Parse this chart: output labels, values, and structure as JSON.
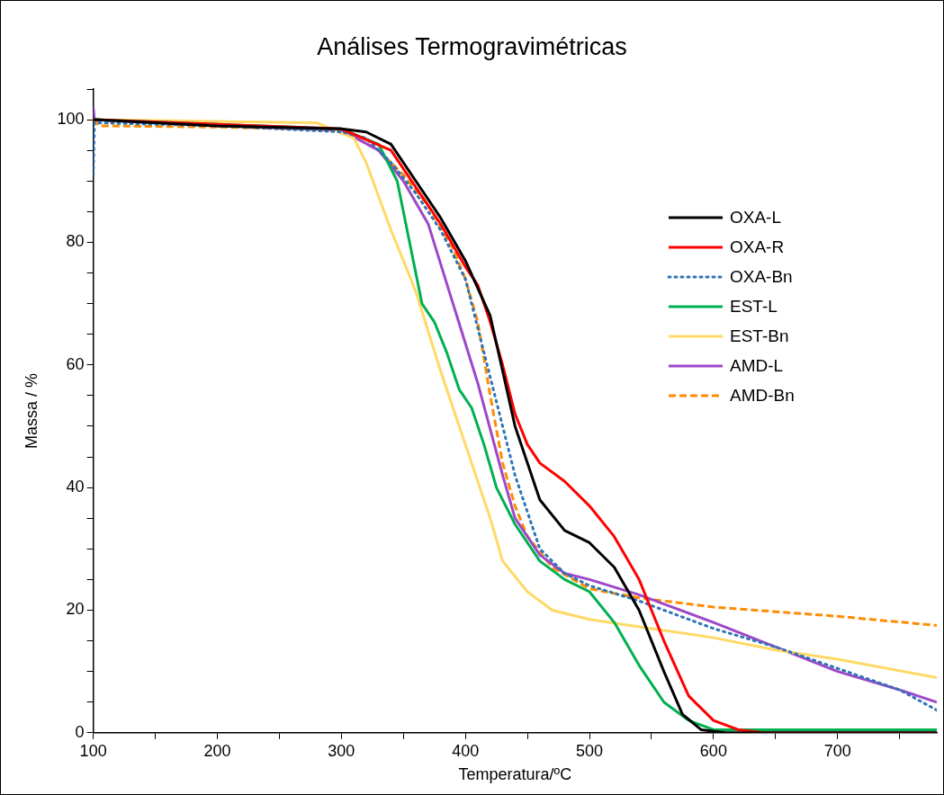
{
  "chart_data": {
    "type": "line",
    "title": "Análises Termogravimétricas",
    "xlabel": "Temperatura/ºC",
    "ylabel": "Massa / %",
    "xlim": [
      100,
      780
    ],
    "ylim": [
      0,
      105
    ],
    "xticks": [
      100,
      {
        "value": 150,
        "label": null
      },
      200,
      {
        "value": 250,
        "label": null
      },
      300,
      {
        "value": 350,
        "label": null
      },
      400,
      {
        "value": 450,
        "label": null
      },
      500,
      {
        "value": 550,
        "label": null
      },
      600,
      {
        "value": 650,
        "label": null
      },
      700,
      {
        "value": 750,
        "label": null
      }
    ],
    "yticks": [
      0,
      {
        "value": 5,
        "label": null
      },
      {
        "value": 10,
        "label": null
      },
      {
        "value": 15,
        "label": null
      },
      20,
      {
        "value": 25,
        "label": null
      },
      {
        "value": 30,
        "label": null
      },
      {
        "value": 35,
        "label": null
      },
      40,
      {
        "value": 45,
        "label": null
      },
      {
        "value": 50,
        "label": null
      },
      {
        "value": 55,
        "label": null
      },
      60,
      {
        "value": 65,
        "label": null
      },
      {
        "value": 70,
        "label": null
      },
      {
        "value": 75,
        "label": null
      },
      80,
      {
        "value": 85,
        "label": null
      },
      {
        "value": 90,
        "label": null
      },
      {
        "value": 95,
        "label": null
      },
      100,
      {
        "value": 105,
        "label": null
      }
    ],
    "grid": false,
    "legend": "right",
    "marker": "none",
    "series": [
      {
        "name": "OXA-L",
        "color": "#000000",
        "line_style": "solid",
        "x": [
          100,
          200,
          300,
          320,
          340,
          360,
          380,
          400,
          420,
          440,
          460,
          480,
          500,
          520,
          540,
          560,
          575,
          590,
          610,
          780
        ],
        "values": [
          100,
          99,
          98.5,
          98,
          96,
          90,
          84,
          77,
          68,
          50,
          38,
          33,
          31,
          27,
          20,
          10,
          3,
          0.5,
          0,
          0
        ]
      },
      {
        "name": "OXA-R",
        "color": "#ff0000",
        "line_style": "solid",
        "x": [
          100,
          300,
          340,
          360,
          380,
          400,
          410,
          420,
          430,
          440,
          450,
          460,
          480,
          500,
          520,
          540,
          560,
          580,
          600,
          620,
          640,
          780
        ],
        "values": [
          100,
          98.5,
          95,
          89,
          83,
          76,
          73,
          67,
          60,
          52,
          47,
          44,
          41,
          37,
          32,
          25,
          15,
          6,
          2,
          0.5,
          0,
          0
        ]
      },
      {
        "name": "OXA-Bn",
        "color": "#2e75b6",
        "line_style": "dotted",
        "x": [
          100,
          101,
          200,
          300,
          320,
          340,
          360,
          380,
          400,
          420,
          440,
          460,
          480,
          500,
          540,
          560,
          600,
          650,
          700,
          750,
          780
        ],
        "values": [
          91,
          99.5,
          99,
          98,
          97,
          93,
          88,
          82,
          74,
          58,
          42,
          30,
          26,
          24,
          21.5,
          20,
          17,
          14,
          10.5,
          7,
          3.7
        ]
      },
      {
        "name": "EST-L",
        "color": "#00b050",
        "line_style": "solid",
        "x": [
          100,
          300,
          330,
          345,
          355,
          365,
          375,
          385,
          395,
          405,
          415,
          425,
          440,
          460,
          480,
          500,
          520,
          540,
          560,
          580,
          600,
          780
        ],
        "values": [
          100,
          98.5,
          96,
          90,
          80,
          70,
          67,
          62,
          56,
          53,
          47,
          40,
          34,
          28,
          25,
          23,
          18,
          11,
          5,
          2,
          0.5,
          0.5
        ]
      },
      {
        "name": "EST-Bn",
        "color": "#ffd966",
        "line_style": "solid",
        "x": [
          100,
          280,
          310,
          320,
          340,
          360,
          380,
          400,
          420,
          430,
          450,
          470,
          500,
          550,
          600,
          650,
          700,
          780
        ],
        "values": [
          100,
          99.5,
          97,
          93,
          82,
          72,
          59,
          47,
          35,
          28,
          23,
          20,
          18.5,
          17,
          15.5,
          13.5,
          12,
          9
        ]
      },
      {
        "name": "AMD-L",
        "color": "#9e48c8",
        "line_style": "solid",
        "x": [
          100,
          101,
          200,
          300,
          330,
          350,
          370,
          390,
          410,
          430,
          440,
          460,
          480,
          500,
          540,
          560,
          600,
          650,
          700,
          750,
          780
        ],
        "values": [
          102,
          100,
          99,
          98.3,
          95,
          90,
          83,
          70,
          57,
          42,
          35,
          29,
          26,
          25,
          22.5,
          21,
          18,
          14,
          10,
          7,
          5
        ]
      },
      {
        "name": "AMD-Bn",
        "color": "#ff8c00",
        "line_style": "dashed",
        "x": [
          100,
          105,
          200,
          300,
          330,
          350,
          370,
          390,
          400,
          410,
          420,
          430,
          440,
          450,
          470,
          500,
          540,
          600,
          700,
          780
        ],
        "values": [
          100,
          99,
          98.8,
          98.3,
          95,
          91,
          86,
          79,
          74,
          67,
          55,
          44,
          37,
          32,
          27,
          23.5,
          22,
          20.5,
          19,
          17.5
        ]
      }
    ]
  }
}
